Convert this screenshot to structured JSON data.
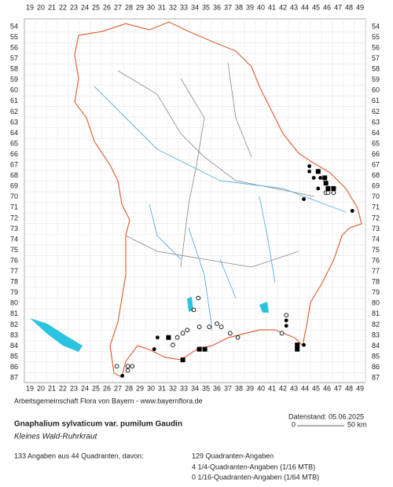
{
  "map": {
    "columns": [
      19,
      20,
      21,
      22,
      23,
      24,
      25,
      26,
      27,
      28,
      29,
      30,
      31,
      32,
      33,
      34,
      35,
      36,
      37,
      38,
      39,
      40,
      41,
      42,
      43,
      44,
      45,
      46,
      47,
      48,
      49
    ],
    "rows": [
      54,
      55,
      56,
      57,
      58,
      59,
      60,
      61,
      62,
      63,
      64,
      65,
      66,
      67,
      68,
      69,
      70,
      71,
      72,
      73,
      74,
      75,
      76,
      77,
      78,
      79,
      80,
      81,
      82,
      83,
      84,
      85,
      86,
      87
    ],
    "points": [
      {
        "x": 44.4,
        "y": 67.1,
        "type": "dot"
      },
      {
        "x": 44.4,
        "y": 67.6,
        "type": "dot"
      },
      {
        "x": 45.2,
        "y": 67.6,
        "type": "square"
      },
      {
        "x": 44.8,
        "y": 68.2,
        "type": "dot"
      },
      {
        "x": 45.4,
        "y": 68.2,
        "type": "dot"
      },
      {
        "x": 45.8,
        "y": 68.2,
        "type": "square"
      },
      {
        "x": 45.9,
        "y": 68.7,
        "type": "square"
      },
      {
        "x": 45.2,
        "y": 69.2,
        "type": "dot"
      },
      {
        "x": 46.1,
        "y": 69.2,
        "type": "square"
      },
      {
        "x": 46.6,
        "y": 69.2,
        "type": "square"
      },
      {
        "x": 45.9,
        "y": 69.6,
        "type": "open"
      },
      {
        "x": 46.1,
        "y": 69.6,
        "type": "open"
      },
      {
        "x": 46.6,
        "y": 69.6,
        "type": "open"
      },
      {
        "x": 43.9,
        "y": 70.2,
        "type": "dot"
      },
      {
        "x": 48.3,
        "y": 71.3,
        "type": "dot"
      },
      {
        "x": 34.3,
        "y": 79.5,
        "type": "open"
      },
      {
        "x": 33.9,
        "y": 80.6,
        "type": "open"
      },
      {
        "x": 42.3,
        "y": 81.1,
        "type": "open"
      },
      {
        "x": 42.3,
        "y": 81.6,
        "type": "dot"
      },
      {
        "x": 42.3,
        "y": 82.1,
        "type": "dot"
      },
      {
        "x": 34.4,
        "y": 82.2,
        "type": "open"
      },
      {
        "x": 35.3,
        "y": 82.2,
        "type": "open"
      },
      {
        "x": 36.0,
        "y": 81.9,
        "type": "open"
      },
      {
        "x": 36.4,
        "y": 82.2,
        "type": "open"
      },
      {
        "x": 33.3,
        "y": 82.5,
        "type": "open"
      },
      {
        "x": 32.9,
        "y": 82.8,
        "type": "open"
      },
      {
        "x": 37.2,
        "y": 82.8,
        "type": "open"
      },
      {
        "x": 41.9,
        "y": 82.8,
        "type": "open"
      },
      {
        "x": 30.6,
        "y": 83.2,
        "type": "dot"
      },
      {
        "x": 31.6,
        "y": 83.2,
        "type": "square"
      },
      {
        "x": 32.4,
        "y": 83.2,
        "type": "open"
      },
      {
        "x": 32.0,
        "y": 83.9,
        "type": "open"
      },
      {
        "x": 37.9,
        "y": 83.2,
        "type": "open"
      },
      {
        "x": 43.3,
        "y": 83.9,
        "type": "square"
      },
      {
        "x": 43.9,
        "y": 83.9,
        "type": "dot"
      },
      {
        "x": 43.3,
        "y": 84.3,
        "type": "square"
      },
      {
        "x": 30.3,
        "y": 84.3,
        "type": "dot"
      },
      {
        "x": 34.4,
        "y": 84.3,
        "type": "square"
      },
      {
        "x": 34.9,
        "y": 84.3,
        "type": "square"
      },
      {
        "x": 32.9,
        "y": 85.3,
        "type": "square"
      },
      {
        "x": 26.9,
        "y": 85.9,
        "type": "open"
      },
      {
        "x": 27.9,
        "y": 85.9,
        "type": "open"
      },
      {
        "x": 28.3,
        "y": 85.9,
        "type": "open"
      },
      {
        "x": 27.9,
        "y": 86.3,
        "type": "open"
      },
      {
        "x": 27.4,
        "y": 86.8,
        "type": "dot"
      }
    ]
  },
  "footer": {
    "credit": "Arbeitsgemeinschaft Flora von Bayern - www.bayernflora.de",
    "date": "Datenstand: 05.06.2025",
    "scale_start": "0",
    "scale_end": "50 km",
    "title": "Gnaphalium sylvaticum var. pumilum Gaudin",
    "subtitle": "Kleines Wald-Ruhrkraut",
    "summary": "133 Angaben aus 44 Quadranten, davon:",
    "details": [
      "129 Quadranten-Angaben",
      "4 1/4-Quadranten-Angaben (1/16 MTB)",
      "0 1/16-Quadranten-Angaben (1/64 MTB)"
    ]
  }
}
